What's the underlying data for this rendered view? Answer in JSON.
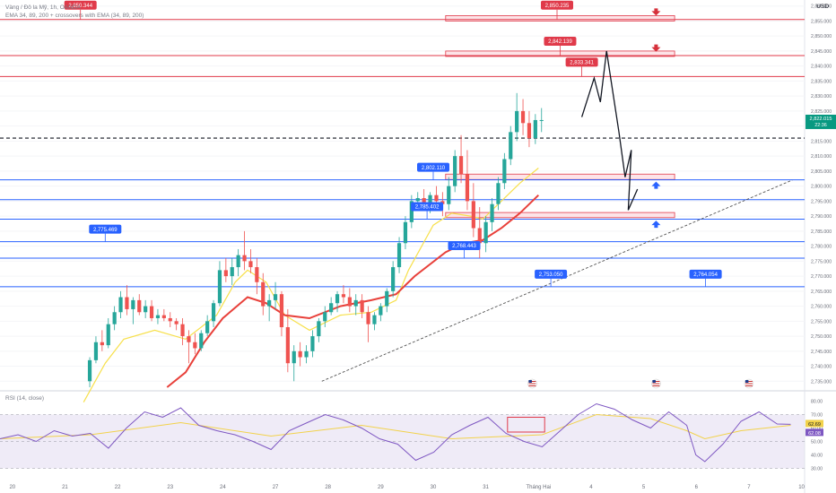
{
  "header": {
    "line1": "Vàng / Đô la Mỹ, 1h, OANDA",
    "line2": "EMA 34, 89, 200 + crossovers with EMA (34, 89, 200)",
    "currency": "USD"
  },
  "rsi_header": "RSI (14, close)",
  "colors": {
    "red": "#e03a4a",
    "blue": "#2962ff",
    "ema34": "#f7e04b",
    "ema89": "#e8403a",
    "up": "#26a69a",
    "down": "#ef5350",
    "rsi": "#7e57c2",
    "rsi_ma": "#f2d24b",
    "zone_fill": "#fde4e8",
    "price_tag": "#089981"
  },
  "icons": [
    "arrow-down-icon",
    "arrow-up-icon",
    "us-flag-icon"
  ],
  "chart_data": {
    "type": "candlestick",
    "symbol": "Vàng / Đô la Mỹ, 1h, OANDA",
    "y_axis": {
      "ticks": [
        "2,860.000",
        "2,855.000",
        "2,850.000",
        "2,845.000",
        "2,840.000",
        "2,835.000",
        "2,830.000",
        "2,825.000",
        "2,820.000",
        "2,815.000",
        "2,810.000",
        "2,805.000",
        "2,800.000",
        "2,795.000",
        "2,790.000",
        "2,785.000",
        "2,780.000",
        "2,775.000",
        "2,770.000",
        "2,765.000",
        "2,760.000",
        "2,755.000",
        "2,750.000",
        "2,745.000",
        "2,740.000",
        "2,735.000"
      ],
      "min": 2733,
      "max": 2862
    },
    "x_axis": {
      "ticks": [
        "20",
        "21",
        "22",
        "23",
        "24",
        "27",
        "28",
        "29",
        "30",
        "31",
        "Tháng Hai",
        "4",
        "5",
        "6",
        "7",
        "10"
      ]
    },
    "current_price": "2,822.015",
    "countdown": "22:36",
    "dashed_level": 2816,
    "red_levels": [
      2855.5,
      2843.5,
      2836.5
    ],
    "blue_levels": [
      2802.1,
      2795.5,
      2789,
      2781.5,
      2776,
      2766.5
    ],
    "zones": [
      {
        "from": 2855,
        "to": 2856.8
      },
      {
        "from": 2843.2,
        "to": 2845
      },
      {
        "from": 2802.2,
        "to": 2804
      },
      {
        "from": 2789.5,
        "to": 2791.2
      }
    ],
    "labels": [
      {
        "text": "2,850.344",
        "color": "red",
        "x": 13,
        "y": 2855.5
      },
      {
        "text": "2,850.235",
        "color": "red",
        "x": 90,
        "y": 2855.5
      },
      {
        "text": "2,842.139",
        "color": "red",
        "x": 90.5,
        "y": 2843.5
      },
      {
        "text": "2,833.341",
        "color": "red",
        "x": 94,
        "y": 2836.5
      },
      {
        "text": "2,802.110",
        "color": "blue",
        "x": 70,
        "y": 2802.1
      },
      {
        "text": "2,785.402",
        "color": "blue",
        "x": 69,
        "y": 2789
      },
      {
        "text": "2,775.469",
        "color": "blue",
        "x": 17,
        "y": 2781.5
      },
      {
        "text": "2,768.443",
        "color": "blue",
        "x": 75,
        "y": 2776
      },
      {
        "text": "2,753.050",
        "color": "blue",
        "x": 89,
        "y": 2766.5
      },
      {
        "text": "2,764.054",
        "color": "blue",
        "x": 114,
        "y": 2766.5
      }
    ],
    "trendline": {
      "from": [
        52,
        2735
      ],
      "to": [
        128,
        2802
      ]
    },
    "projection": [
      [
        94,
        2823
      ],
      [
        96,
        2836
      ],
      [
        97,
        2828
      ],
      [
        98,
        2845
      ],
      [
        100,
        2818
      ],
      [
        101,
        2803
      ],
      [
        102,
        2812
      ],
      [
        101.5,
        2792
      ],
      [
        103,
        2799
      ]
    ],
    "arrows_down": [
      {
        "x": 106,
        "y": 2858
      },
      {
        "x": 106,
        "y": 2846
      }
    ],
    "arrows_up": [
      {
        "x": 106,
        "y": 2800
      },
      {
        "x": 106,
        "y": 2787
      }
    ],
    "candles": [
      [
        14.5,
        2735,
        2743,
        2733,
        2742
      ],
      [
        15.5,
        2742,
        2750,
        2741,
        2748
      ],
      [
        16.5,
        2748,
        2752,
        2745,
        2747
      ],
      [
        17.5,
        2747,
        2756,
        2746,
        2754
      ],
      [
        18.5,
        2754,
        2760,
        2752,
        2758
      ],
      [
        19.5,
        2758,
        2765,
        2756,
        2763
      ],
      [
        20.5,
        2763,
        2767,
        2757,
        2759
      ],
      [
        21.5,
        2759,
        2763,
        2754,
        2762
      ],
      [
        22.5,
        2762,
        2764,
        2757,
        2758
      ],
      [
        23.5,
        2758,
        2762,
        2756,
        2760
      ],
      [
        24.5,
        2760,
        2762,
        2755,
        2756
      ],
      [
        25.5,
        2756,
        2759,
        2754,
        2757
      ],
      [
        26.5,
        2757,
        2759,
        2755,
        2756
      ],
      [
        27.5,
        2756,
        2758,
        2753,
        2755
      ],
      [
        28.5,
        2755,
        2756,
        2752,
        2754
      ],
      [
        29.5,
        2754,
        2756,
        2747,
        2750
      ],
      [
        30.5,
        2750,
        2752,
        2741,
        2748
      ],
      [
        31.5,
        2748,
        2751,
        2744,
        2746
      ],
      [
        32.5,
        2746,
        2752,
        2745,
        2751
      ],
      [
        33.5,
        2751,
        2757,
        2750,
        2755
      ],
      [
        34.5,
        2755,
        2762,
        2753,
        2761
      ],
      [
        35.5,
        2761,
        2775,
        2760,
        2772
      ],
      [
        36.5,
        2772,
        2776,
        2768,
        2770
      ],
      [
        37.5,
        2770,
        2776,
        2767,
        2773
      ],
      [
        38.5,
        2773,
        2779,
        2770,
        2777
      ],
      [
        39.5,
        2777,
        2785,
        2772,
        2775
      ],
      [
        40.5,
        2775,
        2779,
        2771,
        2773
      ],
      [
        41.5,
        2773,
        2776,
        2764,
        2768
      ],
      [
        42.5,
        2768,
        2771,
        2757,
        2760
      ],
      [
        43.5,
        2760,
        2764,
        2755,
        2762
      ],
      [
        44.5,
        2762,
        2768,
        2759,
        2764
      ],
      [
        45.5,
        2764,
        2765,
        2750,
        2753
      ],
      [
        46.5,
        2753,
        2759,
        2738,
        2741
      ],
      [
        47.5,
        2741,
        2747,
        2735,
        2745
      ],
      [
        48.5,
        2745,
        2748,
        2740,
        2743
      ],
      [
        49.5,
        2743,
        2747,
        2741,
        2745
      ],
      [
        50.5,
        2745,
        2752,
        2743,
        2750
      ],
      [
        51.5,
        2750,
        2756,
        2748,
        2755
      ],
      [
        52.5,
        2755,
        2760,
        2753,
        2758
      ],
      [
        53.5,
        2758,
        2763,
        2757,
        2761
      ],
      [
        54.5,
        2761,
        2765,
        2758,
        2764
      ],
      [
        55.5,
        2764,
        2767,
        2761,
        2763
      ],
      [
        56.5,
        2763,
        2766,
        2758,
        2760
      ],
      [
        57.5,
        2760,
        2764,
        2757,
        2762
      ],
      [
        58.5,
        2762,
        2764,
        2756,
        2758
      ],
      [
        59.5,
        2758,
        2760,
        2748,
        2754
      ],
      [
        60.5,
        2754,
        2758,
        2752,
        2757
      ],
      [
        61.5,
        2757,
        2761,
        2755,
        2760
      ],
      [
        62.5,
        2760,
        2766,
        2758,
        2765
      ],
      [
        63.5,
        2765,
        2775,
        2763,
        2773
      ],
      [
        64.5,
        2773,
        2783,
        2771,
        2781
      ],
      [
        65.5,
        2781,
        2790,
        2779,
        2788
      ],
      [
        66.5,
        2788,
        2797,
        2786,
        2795
      ],
      [
        67.5,
        2795,
        2798,
        2792,
        2796
      ],
      [
        68.5,
        2796,
        2799,
        2792,
        2794
      ],
      [
        69.5,
        2794,
        2798,
        2791,
        2797
      ],
      [
        70.5,
        2797,
        2800,
        2793,
        2795
      ],
      [
        71.5,
        2795,
        2798,
        2790,
        2794
      ],
      [
        72.5,
        2794,
        2803,
        2792,
        2800
      ],
      [
        73.5,
        2800,
        2812,
        2798,
        2810
      ],
      [
        74.5,
        2810,
        2817,
        2801,
        2804
      ],
      [
        75.5,
        2804,
        2812,
        2792,
        2795
      ],
      [
        76.5,
        2795,
        2801,
        2783,
        2786
      ],
      [
        77.5,
        2786,
        2793,
        2776,
        2781
      ],
      [
        78.5,
        2781,
        2790,
        2778,
        2788
      ],
      [
        79.5,
        2788,
        2796,
        2785,
        2794
      ],
      [
        80.5,
        2794,
        2803,
        2792,
        2801
      ],
      [
        81.5,
        2801,
        2811,
        2799,
        2809
      ],
      [
        82.5,
        2809,
        2820,
        2807,
        2818
      ],
      [
        83.5,
        2818,
        2831,
        2815,
        2825
      ],
      [
        84.5,
        2825,
        2829,
        2817,
        2821
      ],
      [
        85.5,
        2821,
        2825,
        2813,
        2816
      ],
      [
        86.5,
        2816,
        2824,
        2814,
        2822
      ],
      [
        87.5,
        2822,
        2826,
        2818,
        2822
      ]
    ],
    "ema34": [
      [
        13.5,
        2728
      ],
      [
        17,
        2741
      ],
      [
        20,
        2749
      ],
      [
        25,
        2752
      ],
      [
        30,
        2749
      ],
      [
        35,
        2757
      ],
      [
        38,
        2768
      ],
      [
        40,
        2772
      ],
      [
        43,
        2768
      ],
      [
        46,
        2757
      ],
      [
        50,
        2752
      ],
      [
        55,
        2757
      ],
      [
        60,
        2758
      ],
      [
        64,
        2762
      ],
      [
        66,
        2772
      ],
      [
        70,
        2787
      ],
      [
        73,
        2791
      ],
      [
        76,
        2790
      ],
      [
        78,
        2789
      ],
      [
        81,
        2795
      ],
      [
        84,
        2801
      ],
      [
        87,
        2806
      ]
    ],
    "ema89": [
      [
        27,
        2733
      ],
      [
        30,
        2738
      ],
      [
        33,
        2748
      ],
      [
        36,
        2756
      ],
      [
        40,
        2763
      ],
      [
        43,
        2761
      ],
      [
        46,
        2757
      ],
      [
        50,
        2756
      ],
      [
        55,
        2760
      ],
      [
        60,
        2762
      ],
      [
        64,
        2764
      ],
      [
        67,
        2770
      ],
      [
        72,
        2778
      ],
      [
        75,
        2781
      ],
      [
        78,
        2782
      ],
      [
        81,
        2786
      ],
      [
        84,
        2791
      ],
      [
        87,
        2797
      ]
    ],
    "rsi": {
      "name": "RSI (14, close)",
      "levels": [
        70,
        50,
        30
      ],
      "ticks": [
        "80.00",
        "70.00",
        "60.00",
        "50.00",
        "40.00",
        "30.00"
      ],
      "readouts": [
        "62.69",
        "62.08"
      ],
      "values": [
        [
          0,
          52
        ],
        [
          2,
          55
        ],
        [
          4,
          50
        ],
        [
          6,
          58
        ],
        [
          8,
          54
        ],
        [
          10,
          56
        ],
        [
          12,
          45
        ],
        [
          14,
          60
        ],
        [
          16,
          72
        ],
        [
          18,
          68
        ],
        [
          20,
          75
        ],
        [
          22,
          62
        ],
        [
          24,
          58
        ],
        [
          26,
          55
        ],
        [
          28,
          50
        ],
        [
          30,
          44
        ],
        [
          32,
          58
        ],
        [
          34,
          64
        ],
        [
          36,
          70
        ],
        [
          38,
          66
        ],
        [
          40,
          60
        ],
        [
          42,
          52
        ],
        [
          44,
          48
        ],
        [
          46,
          36
        ],
        [
          48,
          42
        ],
        [
          50,
          55
        ],
        [
          52,
          62
        ],
        [
          54,
          68
        ],
        [
          56,
          56
        ],
        [
          58,
          50
        ],
        [
          60,
          46
        ],
        [
          62,
          58
        ],
        [
          64,
          70
        ],
        [
          66,
          78
        ],
        [
          68,
          74
        ],
        [
          70,
          66
        ],
        [
          72,
          60
        ],
        [
          74,
          72
        ],
        [
          76,
          62
        ],
        [
          77,
          40
        ],
        [
          78,
          35
        ],
        [
          80,
          48
        ],
        [
          82,
          65
        ],
        [
          84,
          72
        ],
        [
          86,
          63
        ],
        [
          87.5,
          62.7
        ]
      ],
      "ma": [
        [
          0,
          52
        ],
        [
          10,
          55
        ],
        [
          20,
          64
        ],
        [
          30,
          54
        ],
        [
          40,
          62
        ],
        [
          50,
          52
        ],
        [
          60,
          55
        ],
        [
          66,
          70
        ],
        [
          72,
          67
        ],
        [
          76,
          58
        ],
        [
          78,
          52
        ],
        [
          82,
          58
        ],
        [
          87.5,
          62
        ]
      ],
      "box": {
        "x0": 82,
        "x1": 88,
        "y0": 57,
        "y1": 68
      }
    }
  }
}
